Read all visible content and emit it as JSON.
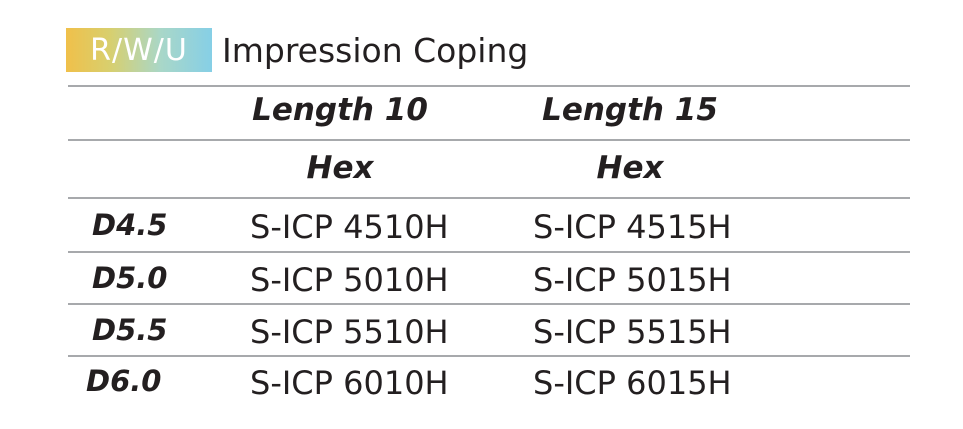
{
  "header": {
    "badge": "R/W/U",
    "title": "Impression Coping"
  },
  "columns": [
    {
      "length": "Length 10",
      "type": "Hex"
    },
    {
      "length": "Length 15",
      "type": "Hex"
    }
  ],
  "rows": [
    {
      "label": "D4.5",
      "cells": [
        "S-ICP 4510H",
        "S-ICP 4515H"
      ]
    },
    {
      "label": "D5.0",
      "cells": [
        "S-ICP 5010H",
        "S-ICP 5015H"
      ]
    },
    {
      "label": "D5.5",
      "cells": [
        "S-ICP 5510H",
        "S-ICP 5515H"
      ]
    },
    {
      "label": "D6.0",
      "cells": [
        "S-ICP 6010H",
        "S-ICP 6015H"
      ]
    }
  ],
  "colors": {
    "text": "#231f20",
    "rule": "#a7a9ac",
    "badge_gradient_start": "#f0c04a",
    "badge_gradient_end": "#86cfe6"
  }
}
